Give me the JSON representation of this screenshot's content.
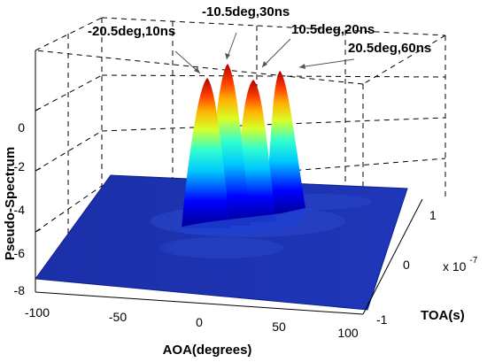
{
  "chart_data": {
    "type": "surface",
    "title": "",
    "xlabel": "AOA(degrees)",
    "ylabel": "TOA(s)",
    "zlabel": "Pseudo-Spectrum",
    "y_multiplier_label": "x 10",
    "y_multiplier_exponent": "-7",
    "xlim": [
      -100,
      100
    ],
    "ylim": [
      -1,
      1
    ],
    "zlim": [
      -8,
      0
    ],
    "x_ticks": [
      "-100",
      "-50",
      "0",
      "50",
      "100"
    ],
    "y_ticks": [
      "-1",
      "0",
      "1"
    ],
    "z_ticks": [
      "0",
      "-2",
      "-4",
      "-6",
      "-8"
    ],
    "grid": true,
    "floor_level": -7.5,
    "peaks": [
      {
        "label": "-20.5deg,10ns",
        "aoa_deg": -20.5,
        "toa_ns": 10,
        "value": 0
      },
      {
        "label": "-10.5deg,30ns",
        "aoa_deg": -10.5,
        "toa_ns": 30,
        "value": 0
      },
      {
        "label": "10.5deg,20ns",
        "aoa_deg": 10.5,
        "toa_ns": 20,
        "value": 0
      },
      {
        "label": "20.5deg,60ns",
        "aoa_deg": 20.5,
        "toa_ns": 60,
        "value": 0
      }
    ],
    "colormap": "jet"
  }
}
